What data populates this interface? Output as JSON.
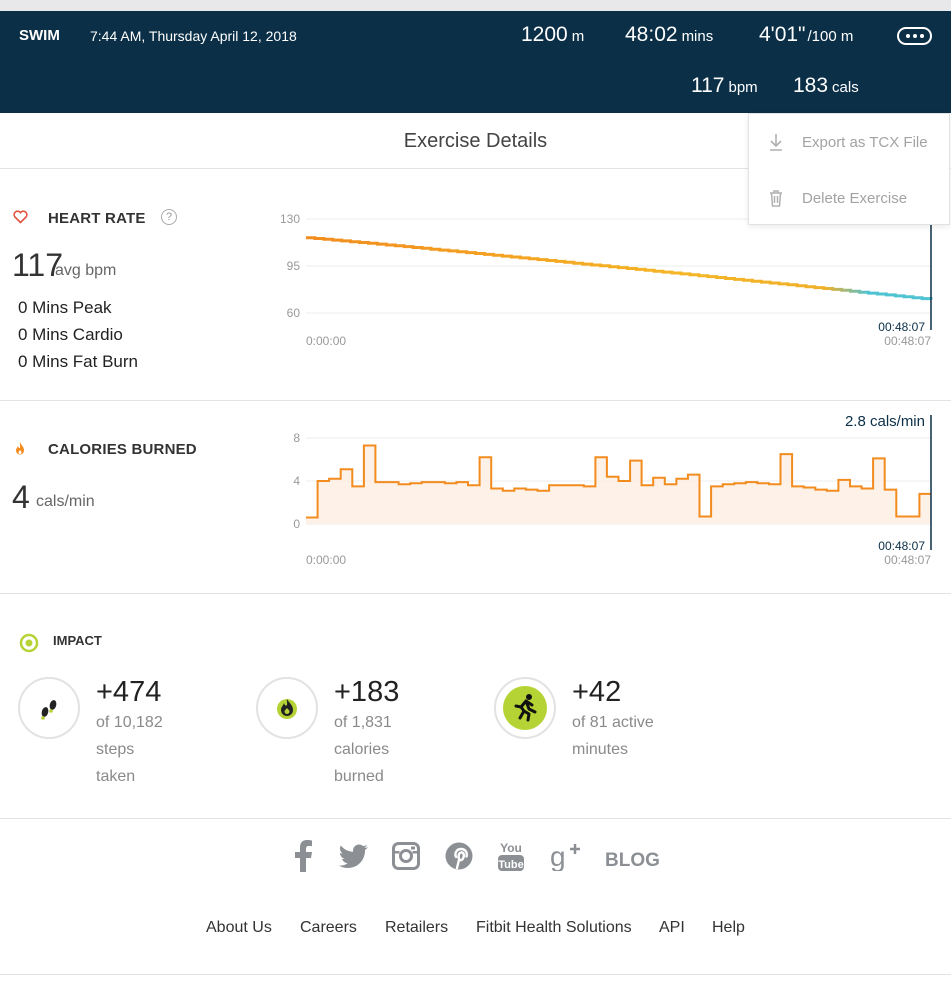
{
  "header": {
    "activity": "SWIM",
    "datetime": "7:44 AM, Thursday April 12, 2018",
    "distance_value": "1200",
    "distance_unit": "m",
    "duration_value": "48:02",
    "duration_unit": "mins",
    "pace_value": "4'01\"",
    "pace_unit": "/100 m",
    "hr_value": "117",
    "hr_unit": "bpm",
    "cal_value": "183",
    "cal_unit": "cals"
  },
  "details_title": "Exercise Details",
  "menu": {
    "export_label": "Export as TCX File",
    "delete_label": "Delete Exercise"
  },
  "heart_rate": {
    "label": "HEART RATE",
    "help": "?",
    "avg_value": "117",
    "avg_unit": "avg bpm",
    "zones": [
      "0 Mins Peak",
      "0 Mins Cardio",
      "0 Mins Fat Burn"
    ],
    "colors": {
      "start": "#f28c1e",
      "mid": "#f5b626",
      "end": "#4fc3d2"
    }
  },
  "calories": {
    "label": "CALORIES BURNED",
    "avg_value": "4",
    "avg_unit": "cals/min",
    "cursor_label": "2.8 cals/min",
    "color": "#f28c1e"
  },
  "impact": {
    "label": "IMPACT",
    "items": [
      {
        "icon": "footsteps-icon",
        "value": "+474",
        "line1": "of 10,182",
        "line2": "steps",
        "line3": "taken"
      },
      {
        "icon": "flame-icon",
        "value": "+183",
        "line1": "of 1,831",
        "line2": "calories",
        "line3": "burned"
      },
      {
        "icon": "runner-icon",
        "value": "+42",
        "line1": "of 81 active",
        "line2": "minutes",
        "line3": ""
      }
    ]
  },
  "footer": {
    "blog": "BLOG",
    "links": [
      "About Us",
      "Careers",
      "Retailers",
      "Fitbit Health Solutions",
      "API",
      "Help"
    ]
  },
  "chart_data": [
    {
      "type": "line",
      "title": "HEART RATE",
      "yticks": [
        "130",
        "95",
        "60"
      ],
      "ylim": [
        60,
        130
      ],
      "x_start_label": "0:00:00",
      "x_end_label": "00:48:07",
      "cursor_time": "00:48:07",
      "x_minutes": [
        0,
        48.1
      ],
      "series": [
        {
          "values": [
            116,
            70
          ]
        }
      ]
    },
    {
      "type": "line",
      "title": "CALORIES BURNED",
      "yticks": [
        "8",
        "4",
        "0"
      ],
      "ylim": [
        0,
        8
      ],
      "x_start_label": "0:00:00",
      "x_end_label": "00:48:07",
      "cursor_time": "00:48:07",
      "cursor_value": "2.8 cals/min",
      "series": [
        {
          "values": [
            0.6,
            4,
            4.2,
            5.1,
            3.5,
            7.3,
            3.9,
            3.9,
            3.7,
            3.8,
            3.9,
            3.9,
            3.8,
            3.9,
            3.6,
            6.2,
            3.3,
            3.1,
            3.3,
            3.2,
            3.1,
            3.6,
            3.6,
            3.6,
            3.5,
            6.2,
            4.4,
            4.0,
            5.9,
            3.6,
            4.3,
            3.7,
            4.2,
            4.6,
            0.7,
            3.5,
            3.7,
            3.8,
            3.9,
            3.8,
            3.7,
            6.5,
            3.5,
            3.4,
            3.2,
            3.1,
            4.1,
            3.5,
            3.3,
            6.1,
            3.2,
            0.7,
            0.7,
            2.8
          ]
        }
      ]
    }
  ]
}
